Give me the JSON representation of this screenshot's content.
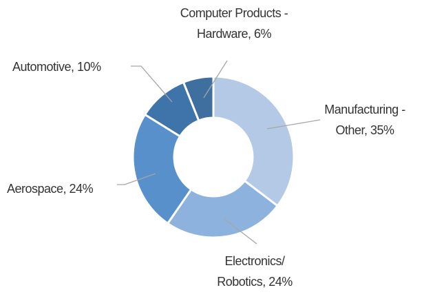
{
  "chart_data": {
    "type": "donut",
    "values": [
      35,
      24,
      24,
      10,
      6
    ],
    "value_labels": [
      "Manufacturing -\nOther, 35%",
      "Electronics/\nRobotics, 24%",
      "Aerospace, 24%",
      "Automotive, 10%",
      "Computer Products -\nHardware, 6%"
    ],
    "colors": [
      "#b4c9e6",
      "#8eb2de",
      "#5790cb",
      "#3f74ab",
      "#3e6f9e"
    ]
  }
}
